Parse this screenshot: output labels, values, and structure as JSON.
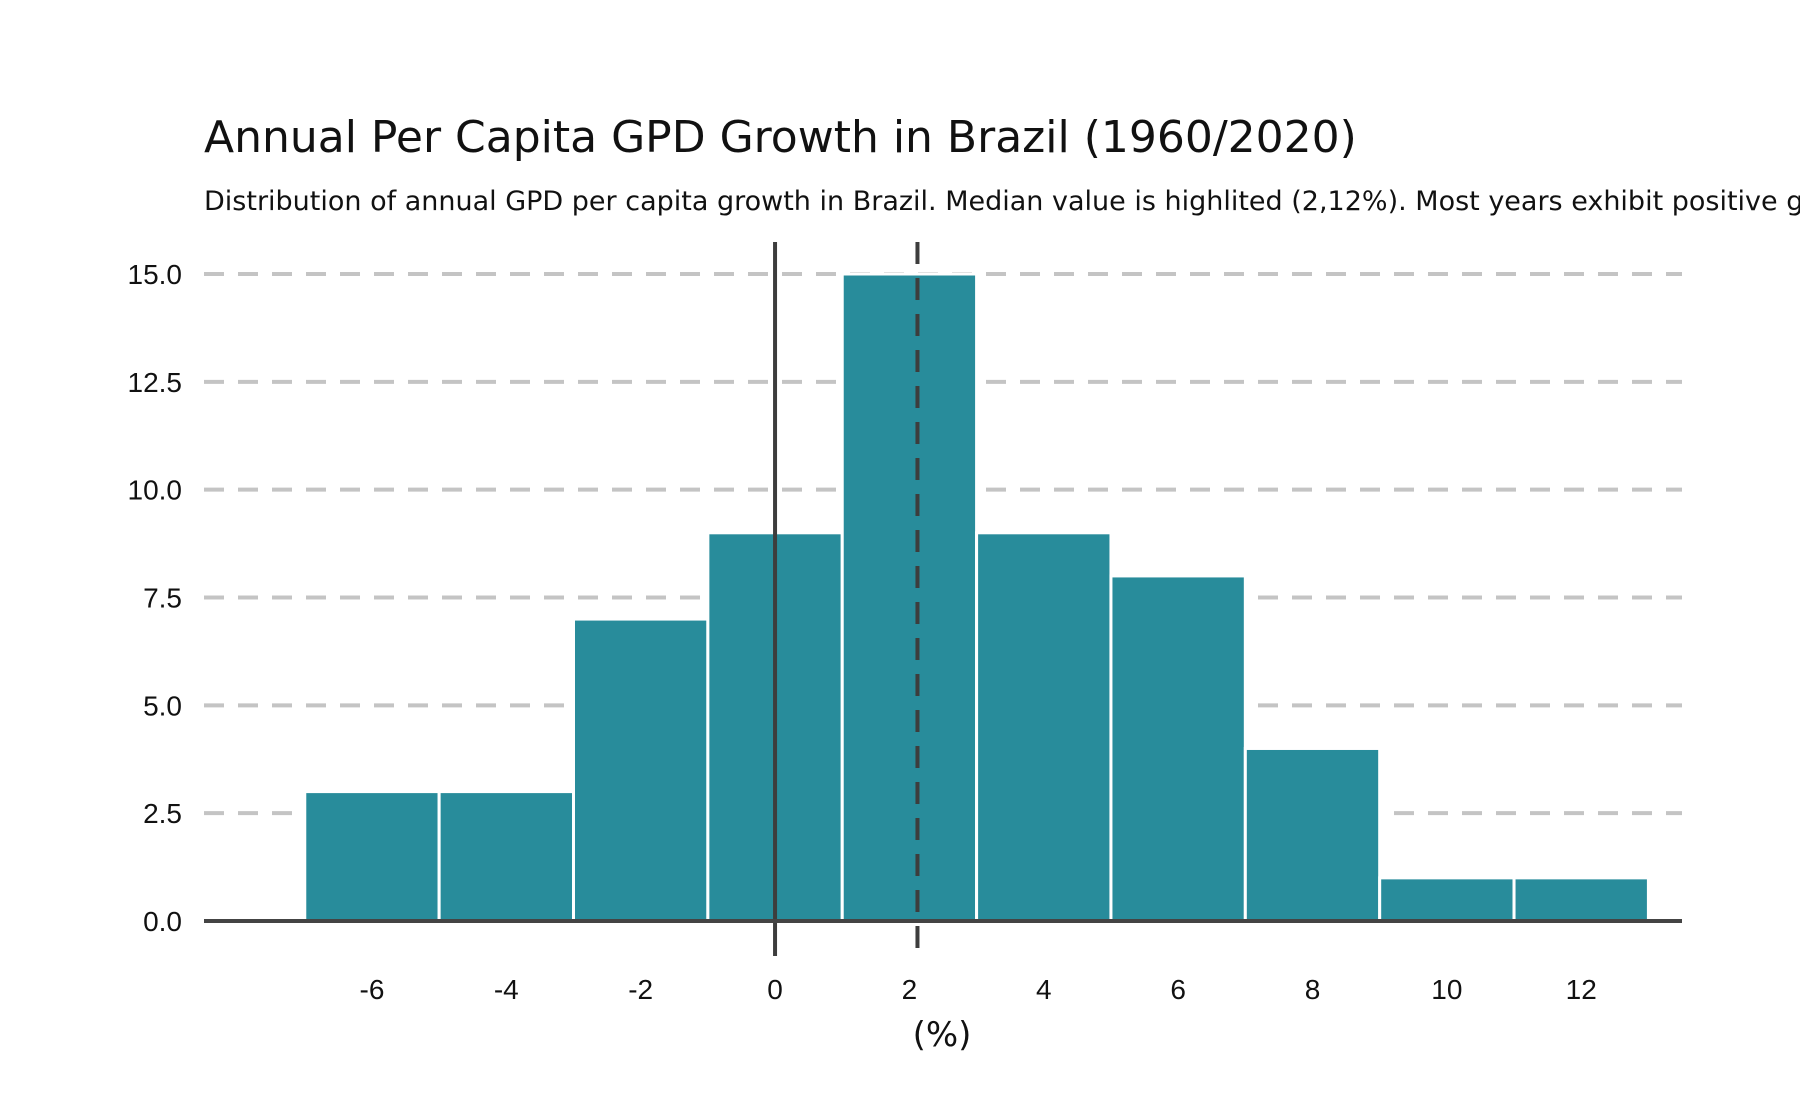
{
  "chart_data": {
    "type": "bar",
    "title": "Annual Per Capita GPD Growth in Brazil (1960/2020)",
    "subtitle": "Distribution of annual GPD per capita growth in Brazil. Median value is highlited (2,12%). Most years exhibit positive gr",
    "xlabel": "(%)",
    "ylabel": "",
    "bin_width": 2,
    "bins": [
      {
        "start": -7,
        "end": -5,
        "count": 3
      },
      {
        "start": -5,
        "end": -3,
        "count": 3
      },
      {
        "start": -3,
        "end": -1,
        "count": 7
      },
      {
        "start": -1,
        "end": 1,
        "count": 9
      },
      {
        "start": 1,
        "end": 3,
        "count": 15
      },
      {
        "start": 3,
        "end": 5,
        "count": 9
      },
      {
        "start": 5,
        "end": 7,
        "count": 8
      },
      {
        "start": 7,
        "end": 9,
        "count": 4
      },
      {
        "start": 9,
        "end": 11,
        "count": 1
      },
      {
        "start": 11,
        "end": 13,
        "count": 1
      }
    ],
    "xlim": [
      -8.5,
      13.5
    ],
    "ylim": [
      0,
      15
    ],
    "x_ticks": [
      -6,
      -4,
      -2,
      0,
      2,
      4,
      6,
      8,
      10,
      12
    ],
    "y_ticks": [
      0.0,
      2.5,
      5.0,
      7.5,
      10.0,
      12.5,
      15.0
    ],
    "y_tick_labels": [
      "0.0",
      "2.5",
      "5.0",
      "7.5",
      "10.0",
      "12.5",
      "15.0"
    ],
    "x_tick_labels": [
      "-6",
      "-4",
      "-2",
      "0",
      "2",
      "4",
      "6",
      "8",
      "10",
      "12"
    ],
    "reference_lines": [
      {
        "x": 0,
        "style": "solid"
      },
      {
        "x": 2.12,
        "style": "dashed"
      }
    ],
    "grid": "horizontal dashed",
    "legend": "none",
    "colors": {
      "bar": "#288c9b",
      "grid": "#c4c4c4",
      "axis": "#444444",
      "reference": "#3d3d3d"
    }
  }
}
